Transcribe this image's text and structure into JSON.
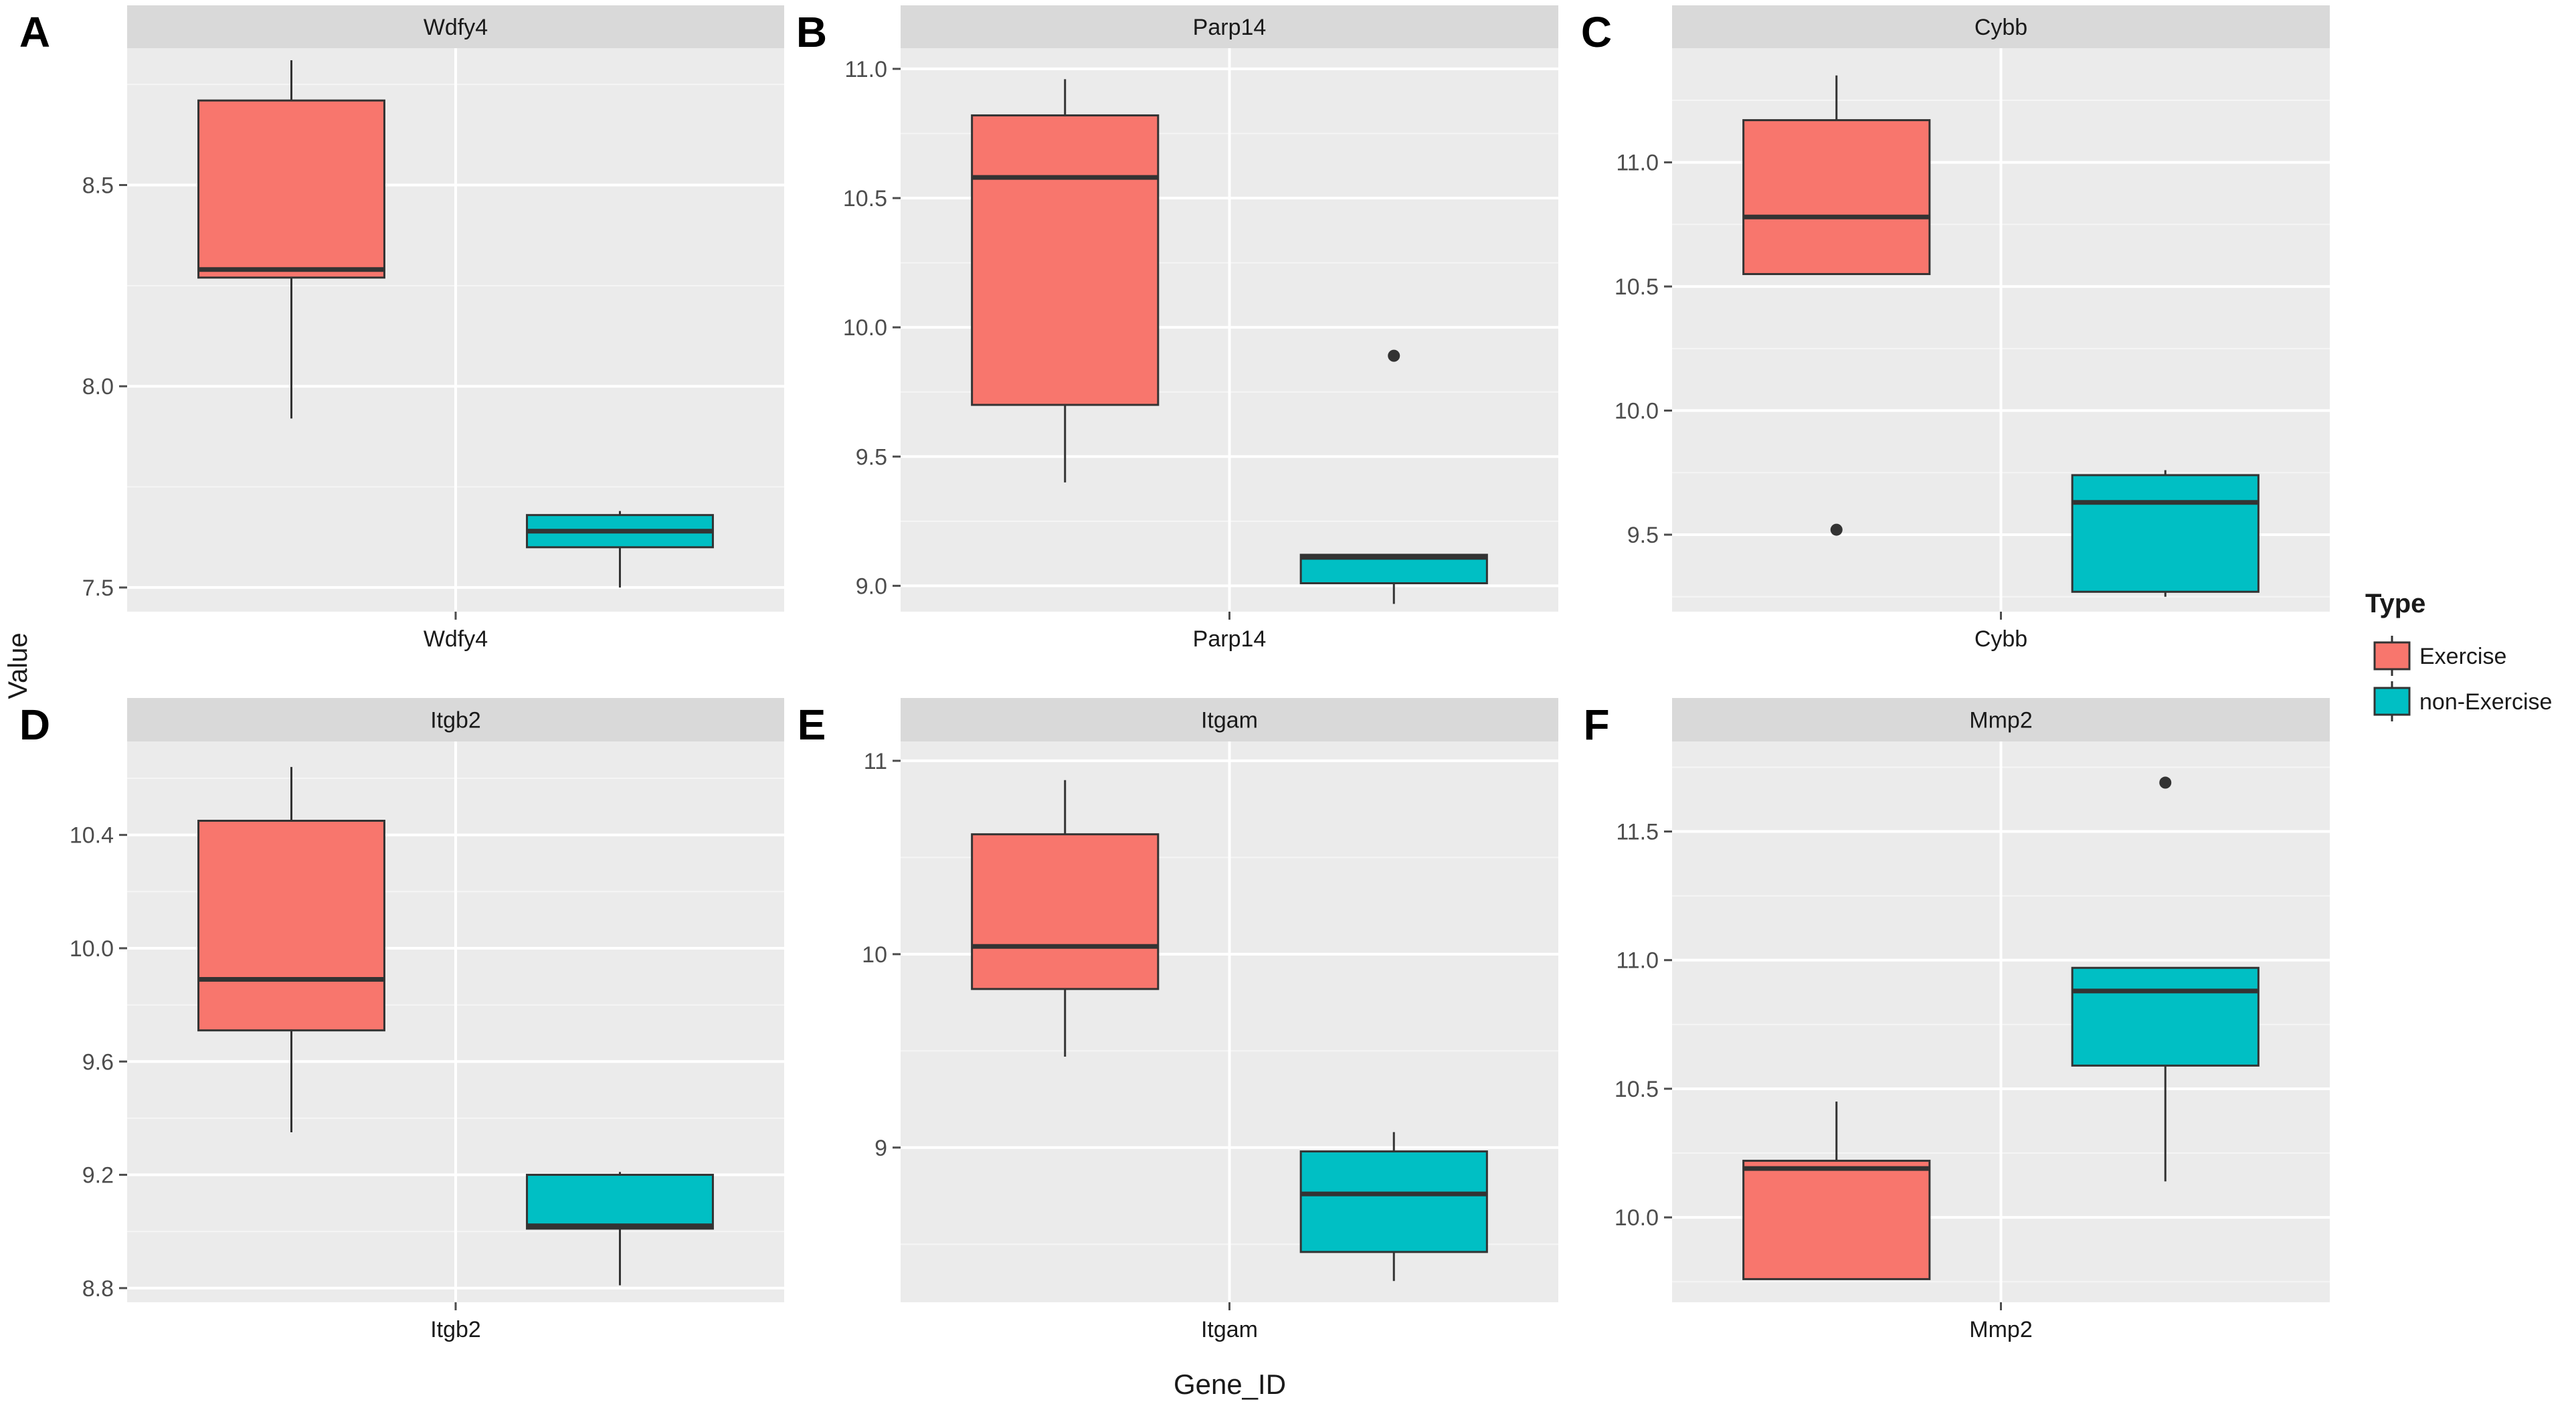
{
  "figure": {
    "y_axis_label": "Value",
    "x_axis_label": "Gene_ID"
  },
  "legend": {
    "title": "Type",
    "items": [
      {
        "label": "Exercise",
        "color": "#F8766D"
      },
      {
        "label": "non-Exercise",
        "color": "#00BFC4"
      }
    ]
  },
  "chart_data": [
    {
      "type": "boxplot",
      "panel_letter": "A",
      "title": "Wdfy4",
      "category": "Wdfy4",
      "ylim": [
        7.44,
        8.84
      ],
      "yticks": [
        7.5,
        8.0,
        8.5
      ],
      "ytick_labels": [
        "7.5",
        "8.0",
        "8.5"
      ],
      "series": [
        {
          "name": "Exercise",
          "color": "#F8766D",
          "min": 7.92,
          "q1": 8.27,
          "median": 8.29,
          "q3": 8.71,
          "max": 8.81,
          "outliers": []
        },
        {
          "name": "non-Exercise",
          "color": "#00BFC4",
          "min": 7.5,
          "q1": 7.6,
          "median": 7.64,
          "q3": 7.68,
          "max": 7.69,
          "outliers": []
        }
      ]
    },
    {
      "type": "boxplot",
      "panel_letter": "B",
      "title": "Parp14",
      "category": "Parp14",
      "ylim": [
        8.9,
        11.08
      ],
      "yticks": [
        9.0,
        9.5,
        10.0,
        10.5,
        11.0
      ],
      "ytick_labels": [
        "9.0",
        "9.5",
        "10.0",
        "10.5",
        "11.0"
      ],
      "series": [
        {
          "name": "Exercise",
          "color": "#F8766D",
          "min": 9.4,
          "q1": 9.7,
          "median": 10.58,
          "q3": 10.82,
          "max": 10.96,
          "outliers": []
        },
        {
          "name": "non-Exercise",
          "color": "#00BFC4",
          "min": 8.93,
          "q1": 9.01,
          "median": 9.11,
          "q3": 9.12,
          "max": 9.12,
          "outliers": [
            9.89
          ]
        }
      ]
    },
    {
      "type": "boxplot",
      "panel_letter": "C",
      "title": "Cybb",
      "category": "Cybb",
      "ylim": [
        9.19,
        11.46
      ],
      "yticks": [
        9.5,
        10.0,
        10.5,
        11.0
      ],
      "ytick_labels": [
        "9.5",
        "10.0",
        "10.5",
        "11.0"
      ],
      "series": [
        {
          "name": "Exercise",
          "color": "#F8766D",
          "min": 10.55,
          "q1": 10.55,
          "median": 10.78,
          "q3": 11.17,
          "max": 11.35,
          "outliers": [
            9.52
          ]
        },
        {
          "name": "non-Exercise",
          "color": "#00BFC4",
          "min": 9.25,
          "q1": 9.27,
          "median": 9.63,
          "q3": 9.74,
          "max": 9.76,
          "outliers": []
        }
      ]
    },
    {
      "type": "boxplot",
      "panel_letter": "D",
      "title": "Itgb2",
      "category": "Itgb2",
      "ylim": [
        8.75,
        10.73
      ],
      "yticks": [
        8.8,
        9.2,
        9.6,
        10.0,
        10.4
      ],
      "ytick_labels": [
        "8.8",
        "9.2",
        "9.6",
        "10.0",
        "10.4"
      ],
      "series": [
        {
          "name": "Exercise",
          "color": "#F8766D",
          "min": 9.35,
          "q1": 9.71,
          "median": 9.89,
          "q3": 10.45,
          "max": 10.64,
          "outliers": []
        },
        {
          "name": "non-Exercise",
          "color": "#00BFC4",
          "min": 8.81,
          "q1": 9.01,
          "median": 9.02,
          "q3": 9.2,
          "max": 9.21,
          "outliers": []
        }
      ]
    },
    {
      "type": "boxplot",
      "panel_letter": "E",
      "title": "Itgam",
      "category": "Itgam",
      "ylim": [
        8.2,
        11.1
      ],
      "yticks": [
        9,
        10,
        11
      ],
      "ytick_labels": [
        "9",
        "10",
        "11"
      ],
      "series": [
        {
          "name": "Exercise",
          "color": "#F8766D",
          "min": 9.47,
          "q1": 9.82,
          "median": 10.04,
          "q3": 10.62,
          "max": 10.9,
          "outliers": []
        },
        {
          "name": "non-Exercise",
          "color": "#00BFC4",
          "min": 8.31,
          "q1": 8.46,
          "median": 8.76,
          "q3": 8.98,
          "max": 9.08,
          "outliers": []
        }
      ]
    },
    {
      "type": "boxplot",
      "panel_letter": "F",
      "title": "Mmp2",
      "category": "Mmp2",
      "ylim": [
        9.67,
        11.85
      ],
      "yticks": [
        10.0,
        10.5,
        11.0,
        11.5
      ],
      "ytick_labels": [
        "10.0",
        "10.5",
        "11.0",
        "11.5"
      ],
      "series": [
        {
          "name": "Exercise",
          "color": "#F8766D",
          "min": 9.76,
          "q1": 9.76,
          "median": 10.19,
          "q3": 10.22,
          "max": 10.45,
          "outliers": []
        },
        {
          "name": "non-Exercise",
          "color": "#00BFC4",
          "min": 10.14,
          "q1": 10.59,
          "median": 10.88,
          "q3": 10.97,
          "max": 10.97,
          "outliers": [
            11.69
          ]
        }
      ]
    }
  ]
}
